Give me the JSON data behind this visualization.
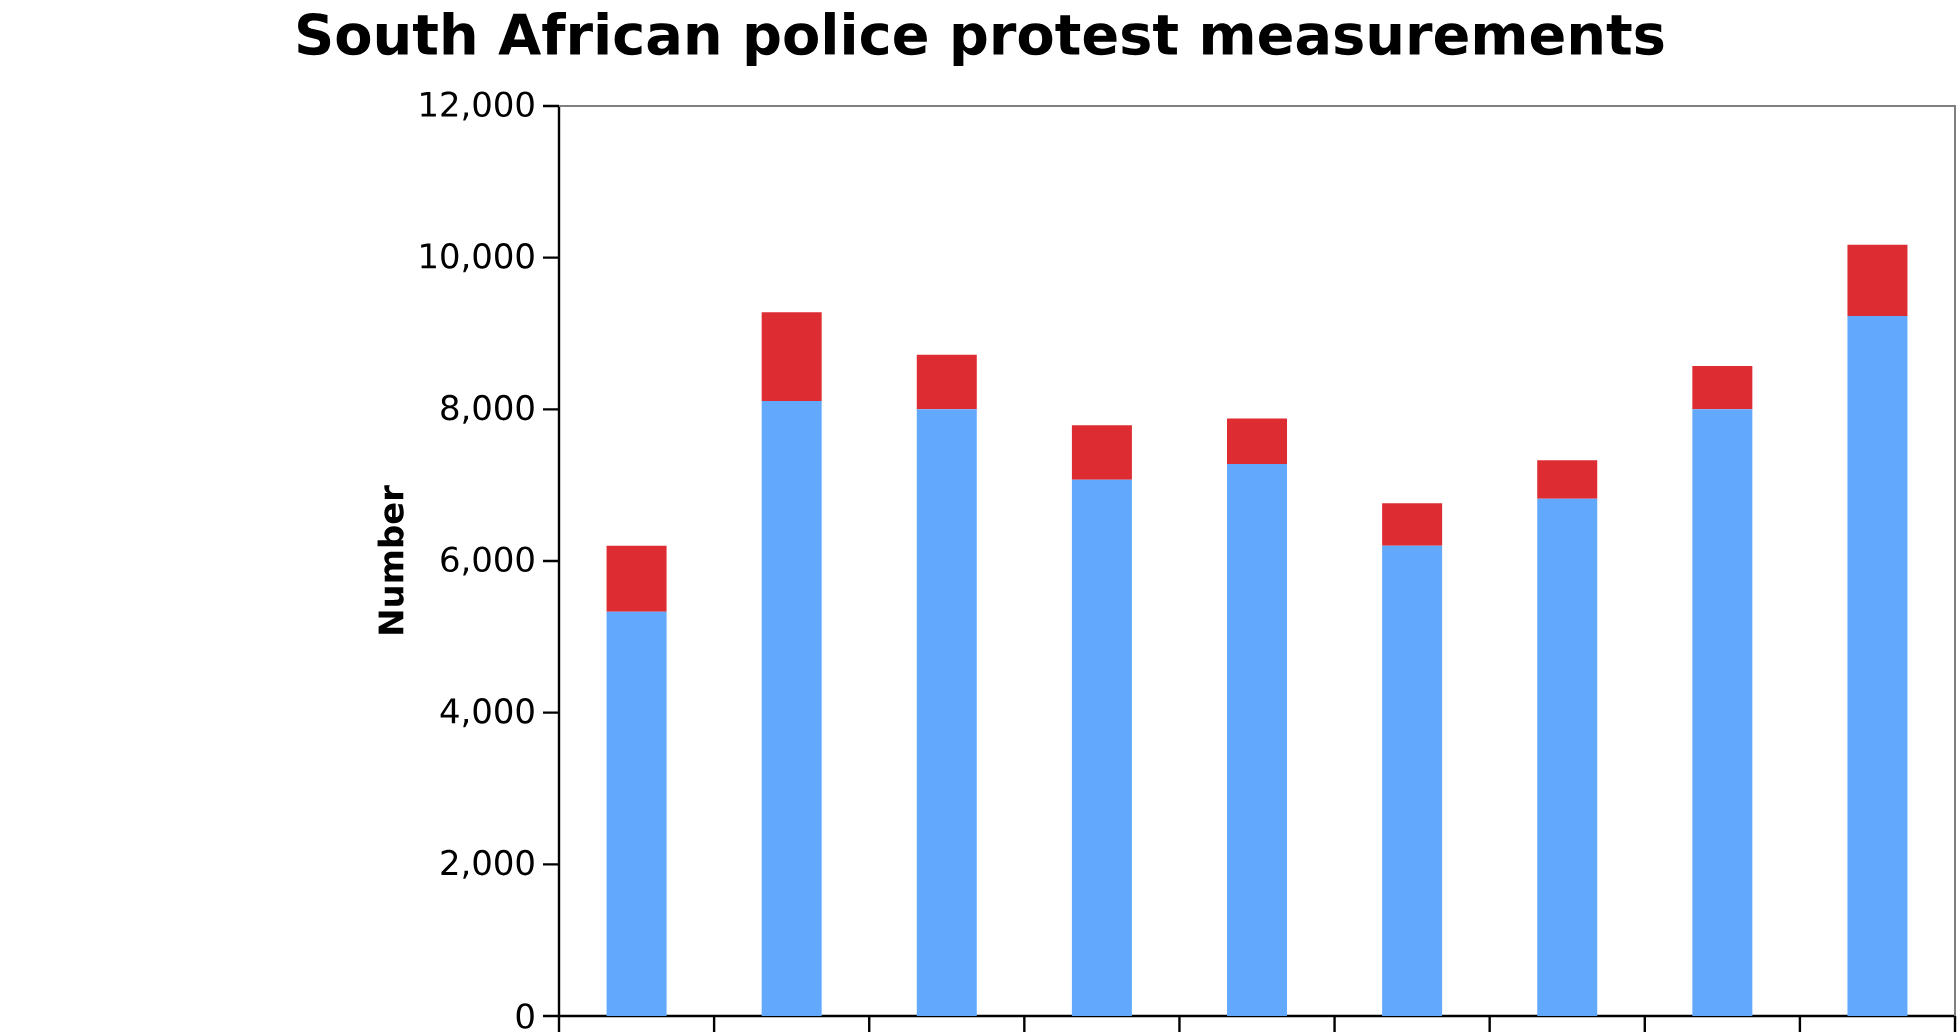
{
  "chart_data": {
    "type": "bar",
    "title": "South African police protest measurements",
    "ylabel": "Number",
    "stacked": true,
    "categories": [
      null,
      null,
      null,
      null,
      null,
      null,
      null,
      null,
      null
    ],
    "series": [
      {
        "color": "#62a9fe",
        "values": [
          5330,
          8110,
          8000,
          7070,
          7280,
          6200,
          6820,
          8000,
          9230
        ]
      },
      {
        "color": "#dd2c32",
        "values": [
          870,
          1170,
          720,
          720,
          600,
          560,
          510,
          570,
          940
        ]
      }
    ],
    "ylim": [
      0,
      12000
    ],
    "yticks": [
      0,
      {
        "value": 2000,
        "label": "2,000"
      },
      {
        "value": 4000,
        "label": "4,000"
      },
      {
        "value": 6000,
        "label": "6,000"
      },
      {
        "value": 8000,
        "label": "8,000"
      },
      {
        "value": 10000,
        "label": "10,000"
      },
      {
        "value": 12000,
        "label": "12,000"
      }
    ],
    "grid": false
  }
}
